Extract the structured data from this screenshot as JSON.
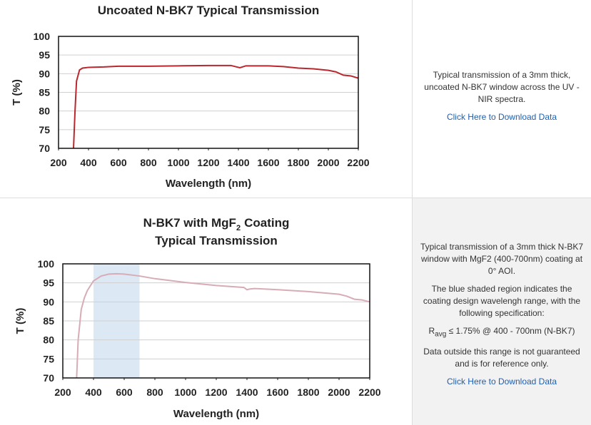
{
  "chart_data": [
    {
      "type": "line",
      "title": "Uncoated N-BK7 Typical Transmission",
      "x_label": "Wavelength (nm)",
      "y_label": "T (%)",
      "x": [
        300,
        310,
        320,
        340,
        360,
        380,
        400,
        500,
        600,
        800,
        1000,
        1200,
        1350,
        1390,
        1410,
        1450,
        1600,
        1700,
        1800,
        1900,
        2000,
        2050,
        2100,
        2150,
        2200
      ],
      "values": [
        70,
        80,
        88,
        91,
        91.5,
        91.6,
        91.7,
        91.8,
        92,
        92,
        92.1,
        92.2,
        92.2,
        91.8,
        91.6,
        92.1,
        92.1,
        91.9,
        91.5,
        91.3,
        90.9,
        90.5,
        89.6,
        89.4,
        88.8
      ],
      "color": "#b8282e",
      "xlim": [
        200,
        2200
      ],
      "ylim": [
        70,
        100
      ],
      "xticks": [
        200,
        400,
        600,
        800,
        1000,
        1200,
        1400,
        1600,
        1800,
        2000,
        2200
      ],
      "yticks": [
        70,
        75,
        80,
        85,
        90,
        95,
        100
      ],
      "grid": true
    },
    {
      "type": "line",
      "title_parts": [
        "N-BK7 with MgF",
        "2",
        "Coating",
        "Typical Transmission"
      ],
      "x_label": "Wavelength (nm)",
      "y_label": "T (%)",
      "x": [
        290,
        300,
        320,
        340,
        360,
        400,
        450,
        500,
        550,
        600,
        700,
        800,
        1000,
        1200,
        1380,
        1400,
        1420,
        1450,
        1600,
        1800,
        2000,
        2050,
        2100,
        2150,
        2200
      ],
      "values": [
        70,
        80,
        88,
        91,
        93,
        95.5,
        96.8,
        97.3,
        97.4,
        97.3,
        96.8,
        96.1,
        95.1,
        94.3,
        93.8,
        93.2,
        93.4,
        93.5,
        93.2,
        92.7,
        92,
        91.5,
        90.7,
        90.5,
        90
      ],
      "color": "#d8acb6",
      "shaded_range": [
        400,
        700
      ],
      "shade_color": "#dce9f5",
      "xlim": [
        200,
        2200
      ],
      "ylim": [
        70,
        100
      ],
      "xticks": [
        200,
        400,
        600,
        800,
        1000,
        1200,
        1400,
        1600,
        1800,
        2000,
        2200
      ],
      "yticks": [
        70,
        75,
        80,
        85,
        90,
        95,
        100
      ],
      "grid": true
    }
  ],
  "descriptions": [
    {
      "paragraphs": [
        "Typical transmission of a 3mm thick, uncoated N-BK7 window across the UV - NIR spectra."
      ],
      "link": "Click Here to Download Data"
    },
    {
      "paragraphs": [
        "Typical transmission of a 3mm thick N-BK7 window with MgF2 (400-700nm) coating at 0° AOI.",
        "The blue shaded region indicates the coating design wavelengh range, with the following specification:"
      ],
      "spec": {
        "symbol": "R",
        "subscript": "avg",
        "text": "≤ 1.75% @ 400 - 700nm (N-BK7)"
      },
      "note": "Data outside this range is not guaranteed and is for reference only.",
      "link": "Click Here to Download Data"
    }
  ]
}
